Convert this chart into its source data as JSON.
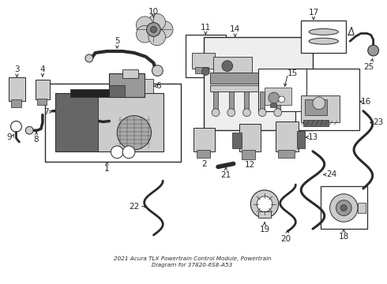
{
  "bg_color": "#ffffff",
  "line_color": "#2a2a2a",
  "gray_light": "#cccccc",
  "gray_med": "#999999",
  "gray_dark": "#666666",
  "parts_layout": {
    "fig_w": 4.9,
    "fig_h": 3.6,
    "dpi": 100
  },
  "label_fontsize": 7.5,
  "title": "2021 Acura TLX Powertrain Control Module, Powertrain\nDiagram for 37820-6S8-A53"
}
